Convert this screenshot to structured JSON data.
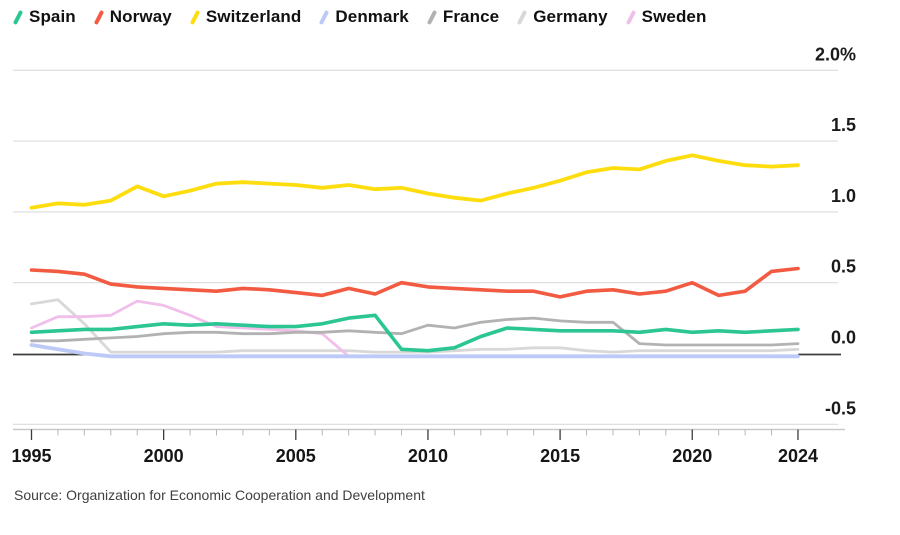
{
  "legend": {
    "items": [
      {
        "label": "Spain",
        "color": "#2bc694"
      },
      {
        "label": "Norway",
        "color": "#f25a41"
      },
      {
        "label": "Switzerland",
        "color": "#fddd0e"
      },
      {
        "label": "Denmark",
        "color": "#bdc9f6"
      },
      {
        "label": "France",
        "color": "#b2b2b2"
      },
      {
        "label": "Germany",
        "color": "#d8d8d8"
      },
      {
        "label": "Sweden",
        "color": "#f0c0ea"
      }
    ]
  },
  "source": "Source: Organization for Economic Cooperation and Development",
  "chart_data": {
    "type": "line",
    "unit": "%",
    "grid": "horizontal",
    "legend_position": "top",
    "ylim": [
      -0.5,
      2.0
    ],
    "x": [
      1995,
      1996,
      1997,
      1998,
      1999,
      2000,
      2001,
      2002,
      2003,
      2004,
      2005,
      2006,
      2007,
      2008,
      2009,
      2010,
      2011,
      2012,
      2013,
      2014,
      2015,
      2016,
      2017,
      2018,
      2019,
      2020,
      2021,
      2022,
      2023,
      2024
    ],
    "x_major_ticks": [
      1995,
      2000,
      2005,
      2010,
      2015,
      2020,
      2024
    ],
    "y_ticks": [
      {
        "value": 2.0,
        "label": "2.0%"
      },
      {
        "value": 1.5,
        "label": "1.5"
      },
      {
        "value": 1.0,
        "label": "1.0"
      },
      {
        "value": 0.5,
        "label": "0.5"
      },
      {
        "value": 0.0,
        "label": "0.0"
      },
      {
        "value": -0.5,
        "label": "-0.5"
      }
    ],
    "zero_axis_color": "#3d3d3d",
    "draw_order": [
      "Germany",
      "Sweden",
      "France",
      "Denmark",
      "Spain",
      "Norway",
      "Switzerland"
    ],
    "series": [
      {
        "name": "Spain",
        "color": "#2bc694",
        "width": 3.6,
        "values": [
          0.15,
          0.16,
          0.17,
          0.17,
          0.19,
          0.21,
          0.2,
          0.21,
          0.2,
          0.19,
          0.19,
          0.21,
          0.25,
          0.27,
          0.03,
          0.02,
          0.04,
          0.12,
          0.18,
          0.17,
          0.16,
          0.16,
          0.16,
          0.15,
          0.17,
          0.15,
          0.16,
          0.15,
          0.16,
          0.17
        ]
      },
      {
        "name": "Norway",
        "color": "#f25a41",
        "width": 3.6,
        "values": [
          0.59,
          0.58,
          0.56,
          0.49,
          0.47,
          0.46,
          0.45,
          0.44,
          0.46,
          0.45,
          0.43,
          0.41,
          0.46,
          0.42,
          0.5,
          0.47,
          0.46,
          0.45,
          0.44,
          0.44,
          0.4,
          0.44,
          0.45,
          0.42,
          0.44,
          0.5,
          0.41,
          0.44,
          0.58,
          0.6
        ]
      },
      {
        "name": "Switzerland",
        "color": "#fddd0e",
        "width": 3.8,
        "values": [
          1.03,
          1.06,
          1.05,
          1.08,
          1.18,
          1.11,
          1.15,
          1.2,
          1.21,
          1.2,
          1.19,
          1.17,
          1.19,
          1.16,
          1.17,
          1.13,
          1.1,
          1.08,
          1.13,
          1.17,
          1.22,
          1.28,
          1.31,
          1.3,
          1.36,
          1.4,
          1.36,
          1.33,
          1.32,
          1.33
        ]
      },
      {
        "name": "Denmark",
        "color": "#bdc9f6",
        "width": 3.8,
        "values": [
          0.06,
          0.03,
          0.0,
          -0.02,
          -0.02,
          -0.02,
          -0.02,
          -0.02,
          -0.02,
          -0.02,
          -0.02,
          -0.02,
          -0.02,
          -0.02,
          -0.02,
          -0.02,
          -0.02,
          -0.02,
          -0.02,
          -0.02,
          -0.02,
          -0.02,
          -0.02,
          -0.02,
          -0.02,
          -0.02,
          -0.02,
          -0.02,
          -0.02,
          -0.02
        ]
      },
      {
        "name": "France",
        "color": "#b2b2b2",
        "width": 2.8,
        "values": [
          0.09,
          0.09,
          0.1,
          0.11,
          0.12,
          0.14,
          0.15,
          0.15,
          0.14,
          0.14,
          0.15,
          0.15,
          0.16,
          0.15,
          0.14,
          0.2,
          0.18,
          0.22,
          0.24,
          0.25,
          0.23,
          0.22,
          0.22,
          0.07,
          0.06,
          0.06,
          0.06,
          0.06,
          0.06,
          0.07
        ]
      },
      {
        "name": "Germany",
        "color": "#d8d8d8",
        "width": 2.8,
        "values": [
          0.35,
          0.38,
          0.21,
          0.01,
          0.01,
          0.01,
          0.01,
          0.01,
          0.02,
          0.02,
          0.02,
          0.02,
          0.02,
          0.01,
          0.01,
          0.01,
          0.02,
          0.03,
          0.03,
          0.04,
          0.04,
          0.02,
          0.01,
          0.02,
          0.02,
          0.02,
          0.02,
          0.02,
          0.02,
          0.03
        ]
      },
      {
        "name": "Sweden",
        "color": "#f0c0ea",
        "width": 2.8,
        "values": [
          0.18,
          0.26,
          0.26,
          0.27,
          0.37,
          0.34,
          0.27,
          0.19,
          0.18,
          0.17,
          0.16,
          0.14,
          -0.02,
          null,
          null,
          null,
          null,
          null,
          null,
          null,
          null,
          null,
          null,
          null,
          null,
          null,
          null,
          null,
          null,
          null
        ]
      }
    ]
  }
}
